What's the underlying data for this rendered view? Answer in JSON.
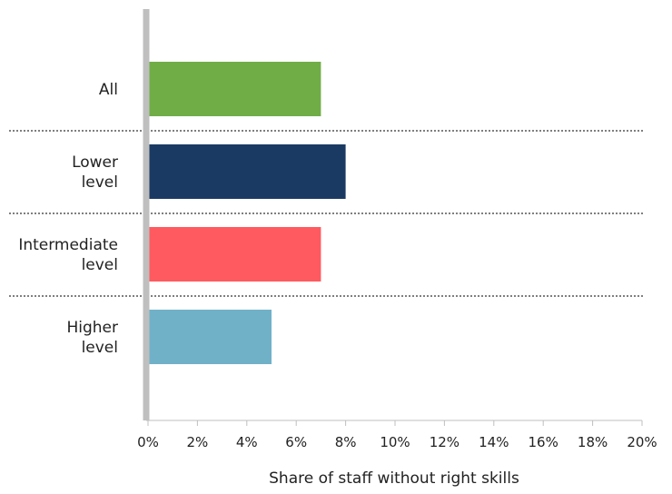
{
  "chart_data": {
    "type": "bar",
    "orientation": "horizontal",
    "categories": [
      {
        "lines": [
          "All"
        ],
        "value": 7,
        "color": "#70ad47"
      },
      {
        "lines": [
          "Lower",
          "level"
        ],
        "value": 8,
        "color": "#1b3a63"
      },
      {
        "lines": [
          "Intermediate",
          "level"
        ],
        "value": 7,
        "color": "#ff5a5f"
      },
      {
        "lines": [
          "Higher",
          "level"
        ],
        "value": 5,
        "color": "#70b1c8"
      }
    ],
    "xlabel": "Share of staff without right skills",
    "xlim": [
      0,
      20
    ],
    "xticks": [
      "0%",
      "2%",
      "4%",
      "6%",
      "8%",
      "10%",
      "12%",
      "14%",
      "16%",
      "18%",
      "20%"
    ],
    "grid": false,
    "separators": "dotted horizontal lines between categories"
  }
}
